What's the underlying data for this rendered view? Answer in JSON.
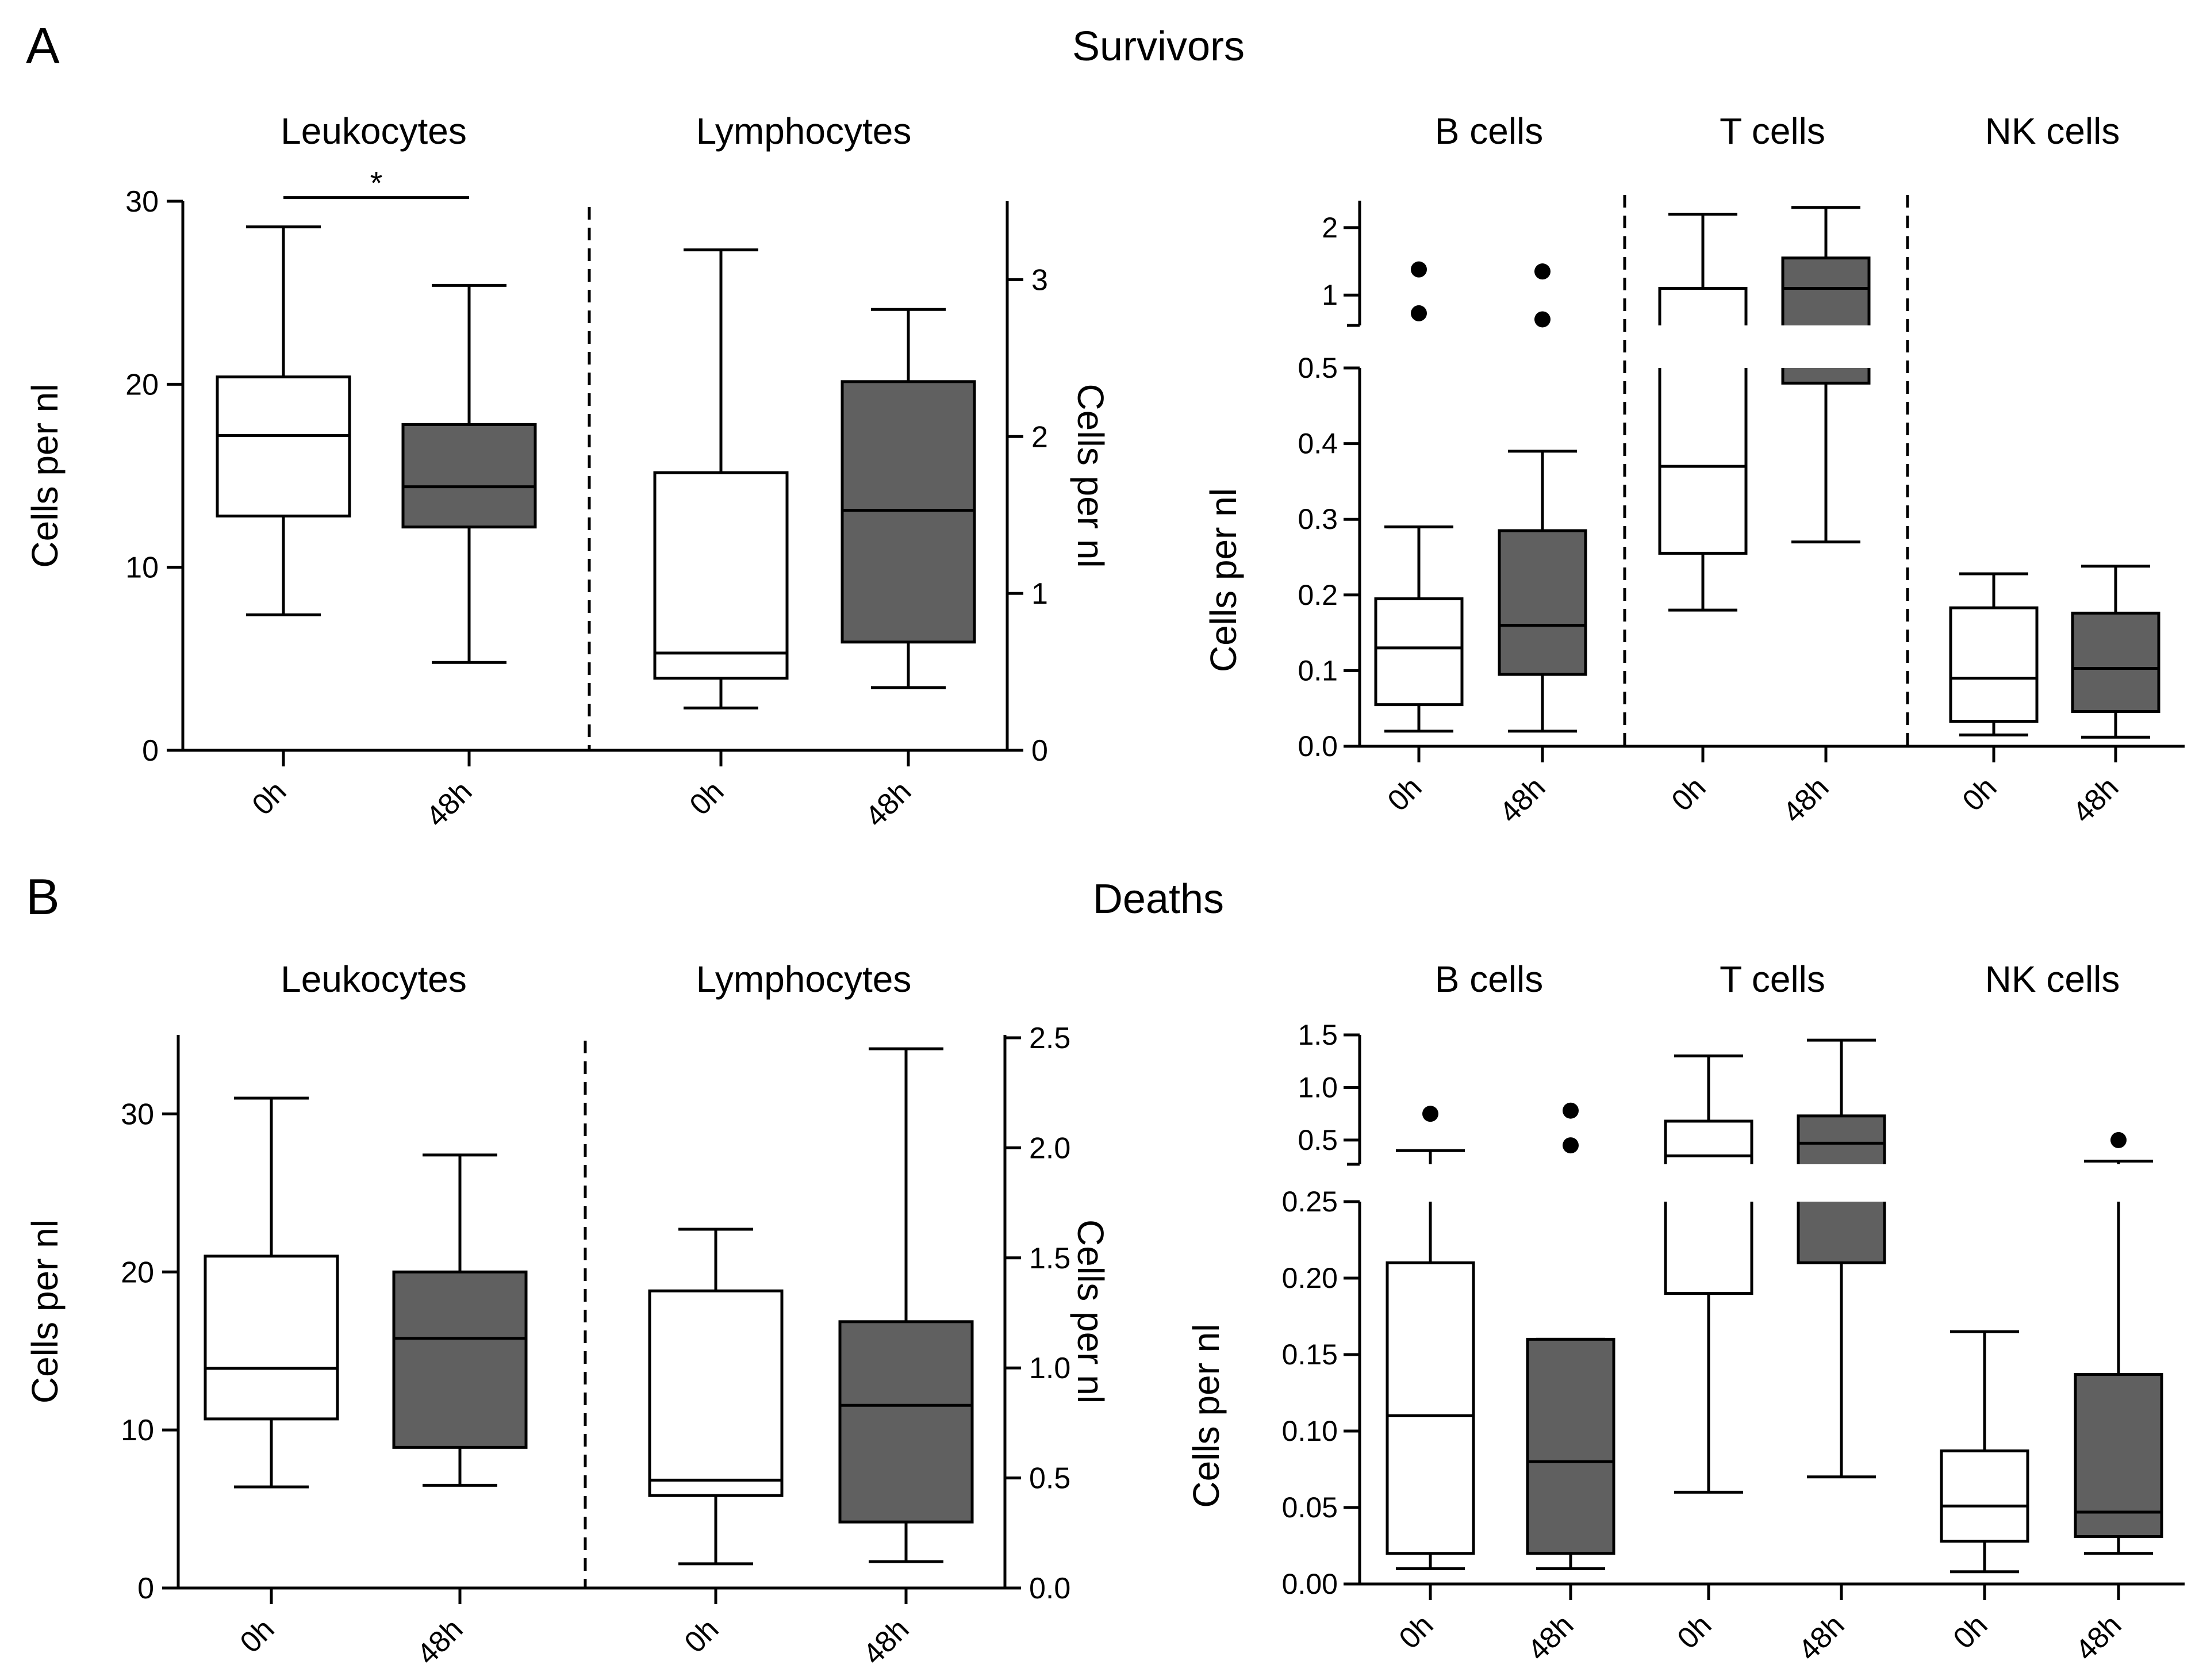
{
  "figure": {
    "panels": [
      {
        "letter": "A",
        "title": "Survivors"
      },
      {
        "letter": "B",
        "title": "Deaths"
      }
    ]
  },
  "chart_data": [
    {
      "type": "box",
      "panel": "A",
      "title": "Leukocytes",
      "ylabel": "Cells per nl",
      "yaxis_side": "left",
      "ylim": [
        0,
        30
      ],
      "yticks": [
        0,
        10,
        20,
        30
      ],
      "categories": [
        "0h",
        "48h"
      ],
      "boxes": [
        {
          "category": "0h",
          "min": 7.4,
          "q1": 12.8,
          "median": 17.2,
          "q3": 20.4,
          "max": 28.6,
          "fill": "#ffffff"
        },
        {
          "category": "48h",
          "min": 4.8,
          "q1": 12.2,
          "median": 14.4,
          "q3": 17.8,
          "max": 25.4,
          "fill": "#606060"
        }
      ],
      "annotations": [
        {
          "text": "*",
          "between": [
            "0h",
            "48h"
          ],
          "y": 30.2
        }
      ]
    },
    {
      "type": "box",
      "panel": "A",
      "title": "Lymphocytes",
      "ylabel": "Cells per nl",
      "yaxis_side": "right",
      "ylim": [
        0,
        3.5
      ],
      "yticks": [
        0,
        1,
        2,
        3
      ],
      "categories": [
        "0h",
        "48h"
      ],
      "boxes": [
        {
          "category": "0h",
          "min": 0.27,
          "q1": 0.46,
          "median": 0.62,
          "q3": 1.77,
          "max": 3.19,
          "fill": "#ffffff"
        },
        {
          "category": "48h",
          "min": 0.4,
          "q1": 0.69,
          "median": 1.53,
          "q3": 2.35,
          "max": 2.81,
          "fill": "#606060"
        }
      ]
    },
    {
      "type": "box",
      "panel": "A",
      "subplots": [
        "B cells",
        "T cells",
        "NK cells"
      ],
      "ylabel": "Cells per nl",
      "yaxis": "broken",
      "lower_ylim": [
        0,
        0.5
      ],
      "lower_yticks": [
        "0.0",
        "0.1",
        "0.2",
        "0.3",
        "0.4",
        "0.5"
      ],
      "upper_ylim": [
        0.55,
        2.4
      ],
      "upper_yticks": [
        "1",
        "2"
      ],
      "categories": [
        "0h",
        "48h",
        "0h",
        "48h",
        "0h",
        "48h"
      ],
      "boxes": [
        {
          "group": "B cells",
          "category": "0h",
          "min": 0.02,
          "q1": 0.055,
          "median": 0.13,
          "q3": 0.195,
          "max": 0.29,
          "outliers": [
            0.73,
            1.38
          ],
          "fill": "#ffffff"
        },
        {
          "group": "B cells",
          "category": "48h",
          "min": 0.02,
          "q1": 0.095,
          "median": 0.16,
          "q3": 0.285,
          "max": 0.39,
          "outliers": [
            0.64,
            1.35
          ],
          "fill": "#606060"
        },
        {
          "group": "T cells",
          "category": "0h",
          "min": 0.18,
          "q1": 0.255,
          "median": 0.37,
          "q3": 1.1,
          "max": 2.2,
          "fill": "#ffffff"
        },
        {
          "group": "T cells",
          "category": "48h",
          "min": 0.27,
          "q1": 0.48,
          "median": 1.1,
          "q3": 1.55,
          "max": 2.3,
          "fill": "#606060"
        },
        {
          "group": "NK cells",
          "category": "0h",
          "min": 0.015,
          "q1": 0.033,
          "median": 0.09,
          "q3": 0.183,
          "max": 0.228,
          "fill": "#ffffff"
        },
        {
          "group": "NK cells",
          "category": "48h",
          "min": 0.012,
          "q1": 0.046,
          "median": 0.103,
          "q3": 0.176,
          "max": 0.238,
          "fill": "#606060"
        }
      ]
    },
    {
      "type": "box",
      "panel": "B",
      "title": "Leukocytes",
      "ylabel": "Cells per nl",
      "yaxis_side": "left",
      "ylim": [
        0,
        35
      ],
      "yticks": [
        0,
        10,
        20,
        30
      ],
      "categories": [
        "0h",
        "48h"
      ],
      "boxes": [
        {
          "category": "0h",
          "min": 6.4,
          "q1": 10.7,
          "median": 13.9,
          "q3": 21.0,
          "max": 31.0,
          "fill": "#ffffff"
        },
        {
          "category": "48h",
          "min": 6.5,
          "q1": 8.9,
          "median": 15.8,
          "q3": 20.0,
          "max": 27.4,
          "fill": "#606060"
        }
      ]
    },
    {
      "type": "box",
      "panel": "B",
      "title": "Lymphocytes",
      "ylabel": "Cells per nl",
      "yaxis_side": "right",
      "ylim": [
        0,
        2.5
      ],
      "yticks": [
        "0.0",
        "0.5",
        "1.0",
        "1.5",
        "2.0",
        "2.5"
      ],
      "categories": [
        "0h",
        "48h"
      ],
      "boxes": [
        {
          "category": "0h",
          "min": 0.11,
          "q1": 0.42,
          "median": 0.49,
          "q3": 1.35,
          "max": 1.63,
          "fill": "#ffffff"
        },
        {
          "category": "48h",
          "min": 0.12,
          "q1": 0.3,
          "median": 0.83,
          "q3": 1.21,
          "max": 2.45,
          "fill": "#606060"
        }
      ]
    },
    {
      "type": "box",
      "panel": "B",
      "subplots": [
        "B cells",
        "T cells",
        "NK cells"
      ],
      "ylabel": "Cells per nl",
      "yaxis": "broken",
      "lower_ylim": [
        0,
        0.25
      ],
      "lower_yticks": [
        "0.00",
        "0.05",
        "0.10",
        "0.15",
        "0.20",
        "0.25"
      ],
      "upper_ylim": [
        0.27,
        1.5
      ],
      "upper_yticks": [
        "0.5",
        "1.0",
        "1.5"
      ],
      "categories": [
        "0h",
        "48h",
        "0h",
        "48h",
        "0h",
        "48h"
      ],
      "boxes": [
        {
          "group": "B cells",
          "category": "0h",
          "min": 0.01,
          "q1": 0.02,
          "median": 0.11,
          "q3": 0.21,
          "max": 0.4,
          "outliers": [
            0.75
          ],
          "fill": "#ffffff"
        },
        {
          "group": "B cells",
          "category": "48h",
          "min": 0.01,
          "q1": 0.02,
          "median": 0.08,
          "q3": 0.16,
          "max": 0.16,
          "outliers": [
            0.45,
            0.78
          ],
          "fill": "#606060"
        },
        {
          "group": "T cells",
          "category": "0h",
          "min": 0.06,
          "q1": 0.19,
          "median": 0.35,
          "q3": 0.68,
          "max": 1.3,
          "fill": "#ffffff"
        },
        {
          "group": "T cells",
          "category": "48h",
          "min": 0.07,
          "q1": 0.21,
          "median": 0.47,
          "q3": 0.73,
          "max": 1.45,
          "fill": "#606060"
        },
        {
          "group": "NK cells",
          "category": "0h",
          "min": 0.008,
          "q1": 0.028,
          "median": 0.051,
          "q3": 0.087,
          "max": 0.165,
          "fill": "#ffffff"
        },
        {
          "group": "NK cells",
          "category": "48h",
          "min": 0.02,
          "q1": 0.031,
          "median": 0.047,
          "q3": 0.137,
          "max": 0.3,
          "outliers": [
            0.5
          ],
          "fill": "#606060"
        }
      ]
    }
  ]
}
